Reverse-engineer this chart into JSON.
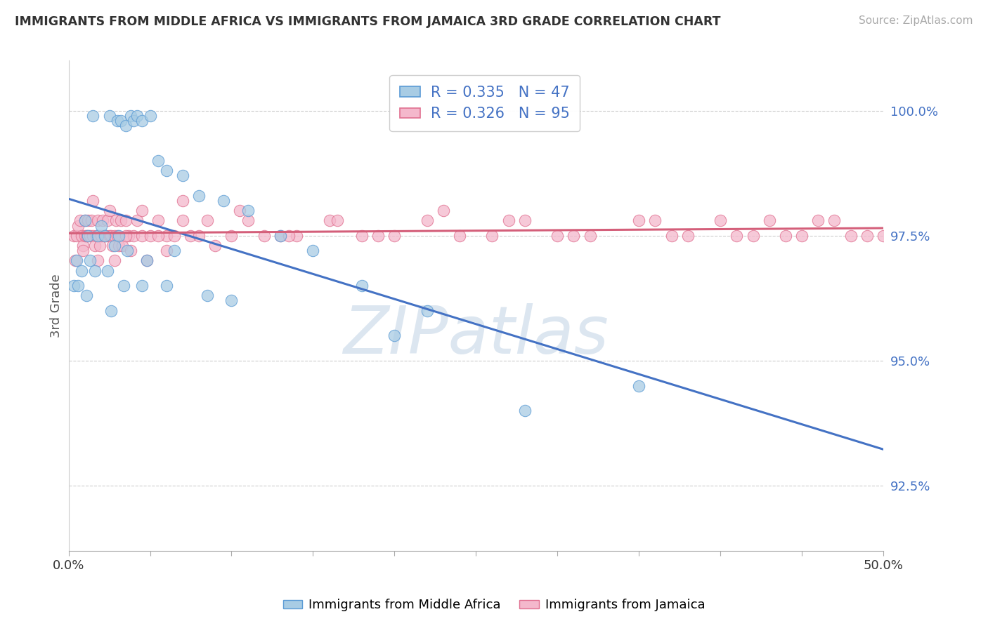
{
  "title": "IMMIGRANTS FROM MIDDLE AFRICA VS IMMIGRANTS FROM JAMAICA 3RD GRADE CORRELATION CHART",
  "source": "Source: ZipAtlas.com",
  "ylabel": "3rd Grade",
  "legend_blue_label": "Immigrants from Middle Africa",
  "legend_pink_label": "Immigrants from Jamaica",
  "r_blue": 0.335,
  "n_blue": 47,
  "r_pink": 0.326,
  "n_pink": 95,
  "blue_color": "#a8cce4",
  "pink_color": "#f4b8cc",
  "blue_edge_color": "#5b9bd5",
  "pink_edge_color": "#e07090",
  "blue_line_color": "#4472c4",
  "pink_line_color": "#d45f7a",
  "tick_color": "#4472c4",
  "watermark_text": "ZIPatlas",
  "watermark_color": "#dce6f0",
  "background_color": "#ffffff",
  "grid_color": "#cccccc",
  "yticks": [
    92.5,
    95.0,
    97.5,
    100.0
  ],
  "ytick_labels": [
    "92.5%",
    "95.0%",
    "97.5%",
    "100.0%"
  ],
  "xlim": [
    0.0,
    50.0
  ],
  "ylim": [
    91.2,
    101.0
  ],
  "blue_x": [
    1.5,
    2.5,
    3.0,
    3.2,
    3.5,
    3.8,
    4.0,
    4.2,
    4.5,
    5.0,
    5.5,
    6.0,
    7.0,
    8.0,
    9.5,
    11.0,
    13.0,
    15.0,
    18.0,
    22.0,
    1.0,
    1.2,
    1.8,
    2.0,
    2.2,
    2.8,
    3.1,
    3.6,
    4.8,
    6.5,
    0.5,
    0.8,
    1.3,
    1.6,
    2.4,
    3.4,
    4.5,
    6.0,
    8.5,
    10.0,
    0.3,
    0.6,
    1.1,
    2.6,
    35.0,
    28.0,
    20.0
  ],
  "blue_y": [
    99.9,
    99.9,
    99.8,
    99.8,
    99.7,
    99.9,
    99.8,
    99.9,
    99.8,
    99.9,
    99.0,
    98.8,
    98.7,
    98.3,
    98.2,
    98.0,
    97.5,
    97.2,
    96.5,
    96.0,
    97.8,
    97.5,
    97.5,
    97.7,
    97.5,
    97.3,
    97.5,
    97.2,
    97.0,
    97.2,
    97.0,
    96.8,
    97.0,
    96.8,
    96.8,
    96.5,
    96.5,
    96.5,
    96.3,
    96.2,
    96.5,
    96.5,
    96.3,
    96.0,
    94.5,
    94.0,
    95.5
  ],
  "pink_x": [
    0.3,
    0.5,
    0.6,
    0.7,
    0.8,
    0.9,
    1.0,
    1.0,
    1.1,
    1.2,
    1.2,
    1.3,
    1.4,
    1.5,
    1.6,
    1.7,
    1.8,
    1.9,
    2.0,
    2.1,
    2.2,
    2.3,
    2.4,
    2.5,
    2.6,
    2.7,
    2.8,
    2.9,
    3.0,
    3.1,
    3.2,
    3.3,
    3.5,
    3.7,
    4.0,
    4.2,
    4.5,
    5.0,
    5.5,
    6.0,
    6.5,
    7.0,
    7.5,
    8.0,
    9.0,
    10.0,
    11.0,
    12.0,
    13.0,
    14.0,
    16.0,
    18.0,
    20.0,
    22.0,
    24.0,
    26.0,
    28.0,
    30.0,
    32.0,
    35.0,
    37.0,
    38.0,
    40.0,
    42.0,
    44.0,
    46.0,
    48.0,
    50.0,
    1.5,
    2.5,
    3.5,
    4.5,
    5.5,
    7.0,
    8.5,
    10.5,
    13.5,
    16.5,
    19.0,
    23.0,
    27.0,
    31.0,
    36.0,
    41.0,
    43.0,
    45.0,
    47.0,
    49.0,
    0.4,
    0.9,
    1.8,
    2.8,
    3.8,
    4.8,
    6.0
  ],
  "pink_y": [
    97.5,
    97.5,
    97.7,
    97.8,
    97.5,
    97.3,
    97.5,
    97.8,
    97.5,
    97.5,
    97.8,
    97.5,
    97.8,
    97.5,
    97.3,
    97.5,
    97.8,
    97.3,
    97.5,
    97.8,
    97.5,
    97.5,
    97.8,
    97.5,
    97.5,
    97.3,
    97.5,
    97.8,
    97.5,
    97.3,
    97.8,
    97.3,
    97.8,
    97.5,
    97.5,
    97.8,
    97.5,
    97.5,
    97.8,
    97.5,
    97.5,
    97.8,
    97.5,
    97.5,
    97.3,
    97.5,
    97.8,
    97.5,
    97.5,
    97.5,
    97.8,
    97.5,
    97.5,
    97.8,
    97.5,
    97.5,
    97.8,
    97.5,
    97.5,
    97.8,
    97.5,
    97.5,
    97.8,
    97.5,
    97.5,
    97.8,
    97.5,
    97.5,
    98.2,
    98.0,
    97.5,
    98.0,
    97.5,
    98.2,
    97.8,
    98.0,
    97.5,
    97.8,
    97.5,
    98.0,
    97.8,
    97.5,
    97.8,
    97.5,
    97.8,
    97.5,
    97.8,
    97.5,
    97.0,
    97.2,
    97.0,
    97.0,
    97.2,
    97.0,
    97.2
  ]
}
